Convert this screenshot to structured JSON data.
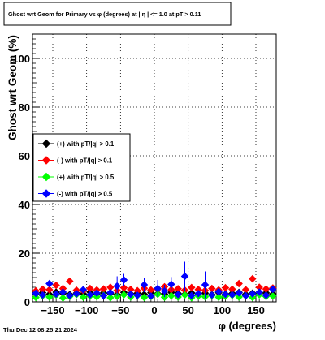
{
  "chart_data": {
    "type": "scatter",
    "title": "Ghost wrt Geom for Primary vs φ (degrees) at |  η  | <= 1.0 at pT > 0.11",
    "xlabel": "φ (degrees)",
    "ylabel": "Ghost wrt Geom (%)",
    "xlim": [
      -180,
      180
    ],
    "ylim": [
      0,
      110
    ],
    "x_ticks": [
      -150,
      -100,
      -50,
      0,
      50,
      100,
      150
    ],
    "y_ticks": [
      0,
      20,
      40,
      60,
      80,
      100
    ],
    "grid": true,
    "legend_placement": "center-left",
    "series": [
      {
        "name": "(+) with pT/|q| > 0.1",
        "color": "#000000",
        "marker": "diamond",
        "x": [
          -175,
          -165,
          -155,
          -145,
          -135,
          -125,
          -115,
          -105,
          -95,
          -85,
          -75,
          -65,
          -55,
          -45,
          -35,
          -25,
          -15,
          -5,
          5,
          15,
          25,
          35,
          45,
          55,
          65,
          75,
          85,
          95,
          105,
          115,
          125,
          135,
          145,
          155,
          165,
          175
        ],
        "y": [
          3.2,
          3.8,
          3.1,
          4.0,
          3.5,
          3.0,
          3.6,
          3.3,
          4.1,
          3.2,
          3.7,
          3.4,
          3.0,
          3.9,
          3.3,
          3.6,
          3.1,
          3.8,
          3.4,
          3.2,
          3.9,
          3.5,
          3.1,
          3.7,
          3.3,
          3.6,
          3.0,
          3.8,
          3.2,
          3.5,
          3.9,
          3.1,
          3.6,
          3.3,
          3.7,
          3.2
        ]
      },
      {
        "name": "(-) with pT/|q| > 0.1",
        "color": "#ff0000",
        "marker": "diamond",
        "x": [
          -175,
          -165,
          -155,
          -145,
          -135,
          -125,
          -115,
          -105,
          -95,
          -85,
          -75,
          -65,
          -55,
          -45,
          -35,
          -25,
          -15,
          -5,
          5,
          15,
          25,
          35,
          45,
          55,
          65,
          75,
          85,
          95,
          105,
          115,
          125,
          135,
          145,
          155,
          165,
          175
        ],
        "y": [
          4.5,
          5.2,
          5.0,
          6.8,
          5.5,
          8.5,
          4.8,
          4.6,
          5.5,
          4.9,
          5.3,
          6.0,
          4.7,
          5.8,
          5.1,
          4.6,
          5.6,
          4.9,
          5.2,
          6.2,
          5.0,
          5.4,
          4.8,
          5.9,
          5.1,
          4.7,
          5.5,
          4.9,
          5.8,
          5.2,
          7.5,
          5.0,
          9.5,
          6.0,
          5.3,
          5.7
        ]
      },
      {
        "name": "(+) with pT/|q| > 0.5",
        "color": "#00ff00",
        "marker": "diamond",
        "x": [
          -175,
          -165,
          -155,
          -145,
          -135,
          -125,
          -115,
          -105,
          -95,
          -85,
          -75,
          -65,
          -55,
          -45,
          -35,
          -25,
          -15,
          -5,
          5,
          15,
          25,
          35,
          45,
          55,
          65,
          75,
          85,
          95,
          105,
          115,
          125,
          135,
          145,
          155,
          165,
          175
        ],
        "y": [
          1.8,
          2.5,
          2.0,
          2.8,
          1.6,
          2.2,
          3.0,
          1.9,
          2.4,
          2.1,
          2.7,
          1.7,
          2.3,
          2.9,
          2.0,
          2.6,
          1.8,
          2.2,
          3.1,
          1.9,
          2.5,
          2.0,
          2.8,
          1.7,
          2.4,
          2.1,
          2.6,
          1.9,
          2.3,
          2.7,
          2.0,
          2.5,
          1.8,
          2.9,
          2.2,
          2.4
        ]
      },
      {
        "name": "(-) with pT/|q| > 0.5",
        "color": "#0000ff",
        "marker": "diamond",
        "x": [
          -175,
          -165,
          -155,
          -145,
          -135,
          -125,
          -115,
          -105,
          -95,
          -85,
          -75,
          -65,
          -55,
          -45,
          -35,
          -25,
          -15,
          -5,
          5,
          15,
          25,
          35,
          45,
          55,
          65,
          75,
          85,
          95,
          105,
          115,
          125,
          135,
          145,
          155,
          165,
          175
        ],
        "y": [
          3.5,
          2.8,
          7.5,
          3.2,
          4.0,
          2.6,
          3.3,
          5.0,
          2.9,
          3.6,
          2.5,
          3.8,
          6.5,
          9.0,
          3.1,
          2.7,
          7.0,
          2.4,
          5.5,
          4.5,
          7.2,
          3.0,
          10.5,
          2.6,
          3.4,
          7.0,
          2.8,
          4.2,
          3.1,
          2.9,
          3.7,
          2.5,
          3.3,
          4.0,
          2.7,
          5.2
        ],
        "error": [
          0.8,
          0.7,
          1.2,
          0.8,
          0.9,
          0.7,
          0.8,
          1.0,
          0.7,
          0.8,
          0.7,
          0.9,
          4.0,
          2.5,
          0.8,
          0.7,
          3.0,
          0.7,
          3.5,
          2.5,
          3.0,
          0.8,
          6.0,
          0.7,
          0.8,
          5.5,
          0.7,
          1.5,
          0.8,
          0.7,
          0.9,
          0.7,
          0.8,
          1.0,
          0.7,
          1.2
        ]
      }
    ]
  },
  "footer": {
    "timestamp": "Thu Dec 12 08:25:21 2024"
  }
}
